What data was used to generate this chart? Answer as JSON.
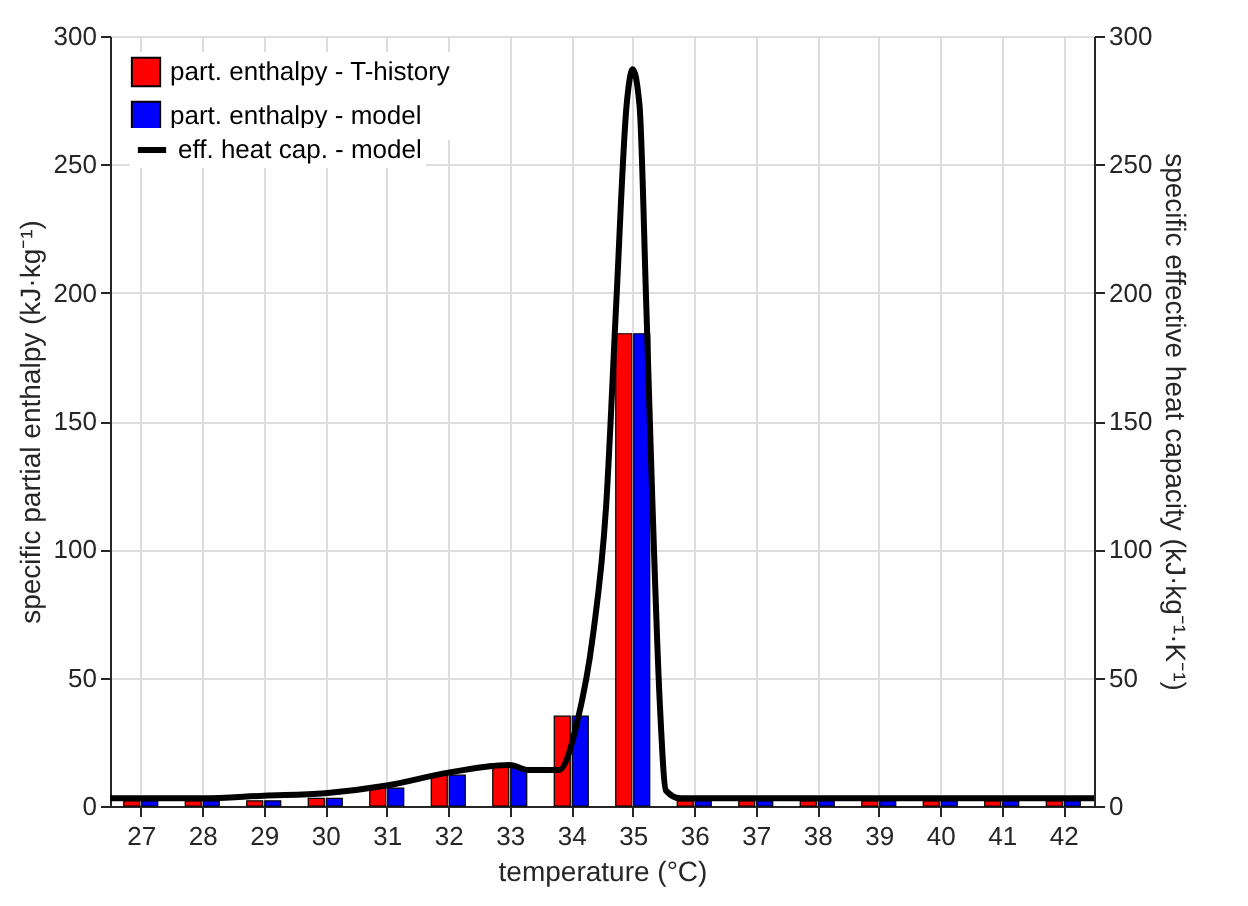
{
  "chart_data": {
    "type": "bar",
    "xlabel": "temperature (°C)",
    "ylabel": "specific partial enthalpy (kJ·kg⁻¹)",
    "y2label": "specific effective heat capacity (kJ·kg⁻¹·K⁻¹)",
    "x": [
      27,
      28,
      29,
      30,
      31,
      32,
      33,
      34,
      35,
      36,
      37,
      38,
      39,
      40,
      41,
      42
    ],
    "xlim": [
      26.5,
      42.5
    ],
    "xticks": [
      27,
      28,
      29,
      30,
      31,
      32,
      33,
      34,
      35,
      36,
      37,
      38,
      39,
      40,
      41,
      42
    ],
    "ylim": [
      0,
      300
    ],
    "yticks": [
      0,
      50,
      100,
      150,
      200,
      250,
      300
    ],
    "y2lim": [
      0,
      300
    ],
    "y2ticks": [
      0,
      50,
      100,
      150,
      200,
      250,
      300
    ],
    "grid": true,
    "legend": "top left",
    "series": [
      {
        "name": "part. enthalpy - T-history",
        "color": "#ff0000",
        "values": [
          2,
          2,
          2,
          3,
          7,
          12,
          15,
          35,
          184,
          2,
          2,
          2,
          2,
          2,
          2,
          2
        ]
      },
      {
        "name": "part. enthalpy - model",
        "color": "#0000ff",
        "values": [
          2,
          2,
          2,
          3,
          7,
          12,
          15,
          35,
          184,
          2,
          2,
          2,
          2,
          2,
          2,
          2
        ]
      },
      {
        "name": "eff. heat cap. - model",
        "color": "#000000",
        "type": "line",
        "axis": "y2",
        "line_style": "solid",
        "marker": "none",
        "x": [
          26.5,
          28,
          29,
          30,
          31,
          32,
          33,
          33.3,
          33.8,
          34.1,
          34.35,
          34.57,
          34.73,
          34.9,
          35,
          35.11,
          35.22,
          35.32,
          35.44,
          35.54,
          35.77,
          42.5
        ],
        "values": [
          3,
          3,
          4,
          5,
          8,
          13,
          16,
          14,
          14,
          33,
          66,
          118,
          195,
          273,
          287,
          273,
          195,
          118,
          40,
          6,
          3,
          3
        ]
      }
    ]
  }
}
